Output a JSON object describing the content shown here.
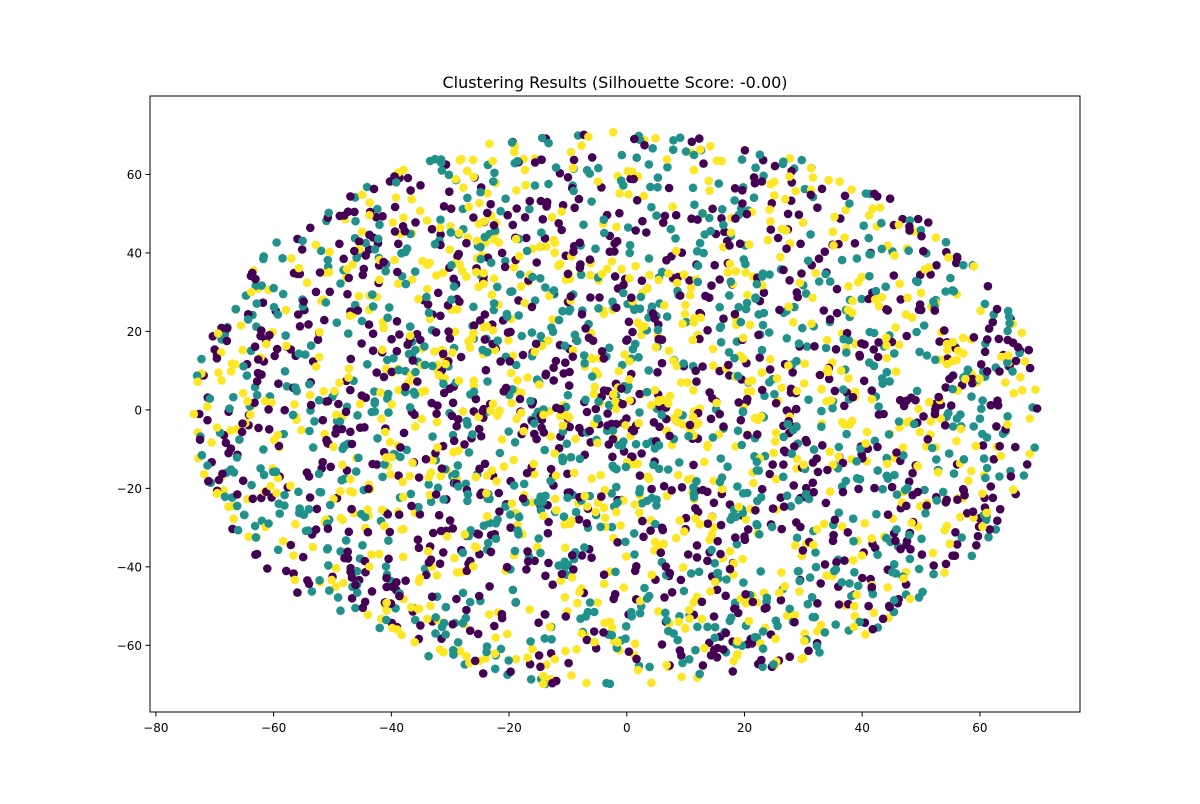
{
  "chart_data": {
    "type": "scatter",
    "title": "Clustering Results (Silhouette Score: -0.00)",
    "xlabel": "",
    "ylabel": "",
    "xlim": [
      -81,
      77
    ],
    "ylim": [
      -77,
      80
    ],
    "xticks": [
      -80,
      -60,
      -40,
      -20,
      0,
      20,
      40,
      60
    ],
    "yticks": [
      -60,
      -40,
      -20,
      0,
      20,
      40,
      60
    ],
    "grid": false,
    "legend": "none",
    "cloud": {
      "center": [
        -2,
        0
      ],
      "x_range": [
        -74,
        70
      ],
      "y_range": [
        -69,
        73
      ],
      "approx_points": 3000,
      "clusters": 3
    },
    "series": [
      {
        "color": "#440154"
      },
      {
        "color": "#21918c"
      },
      {
        "color": "#fde725"
      }
    ]
  }
}
